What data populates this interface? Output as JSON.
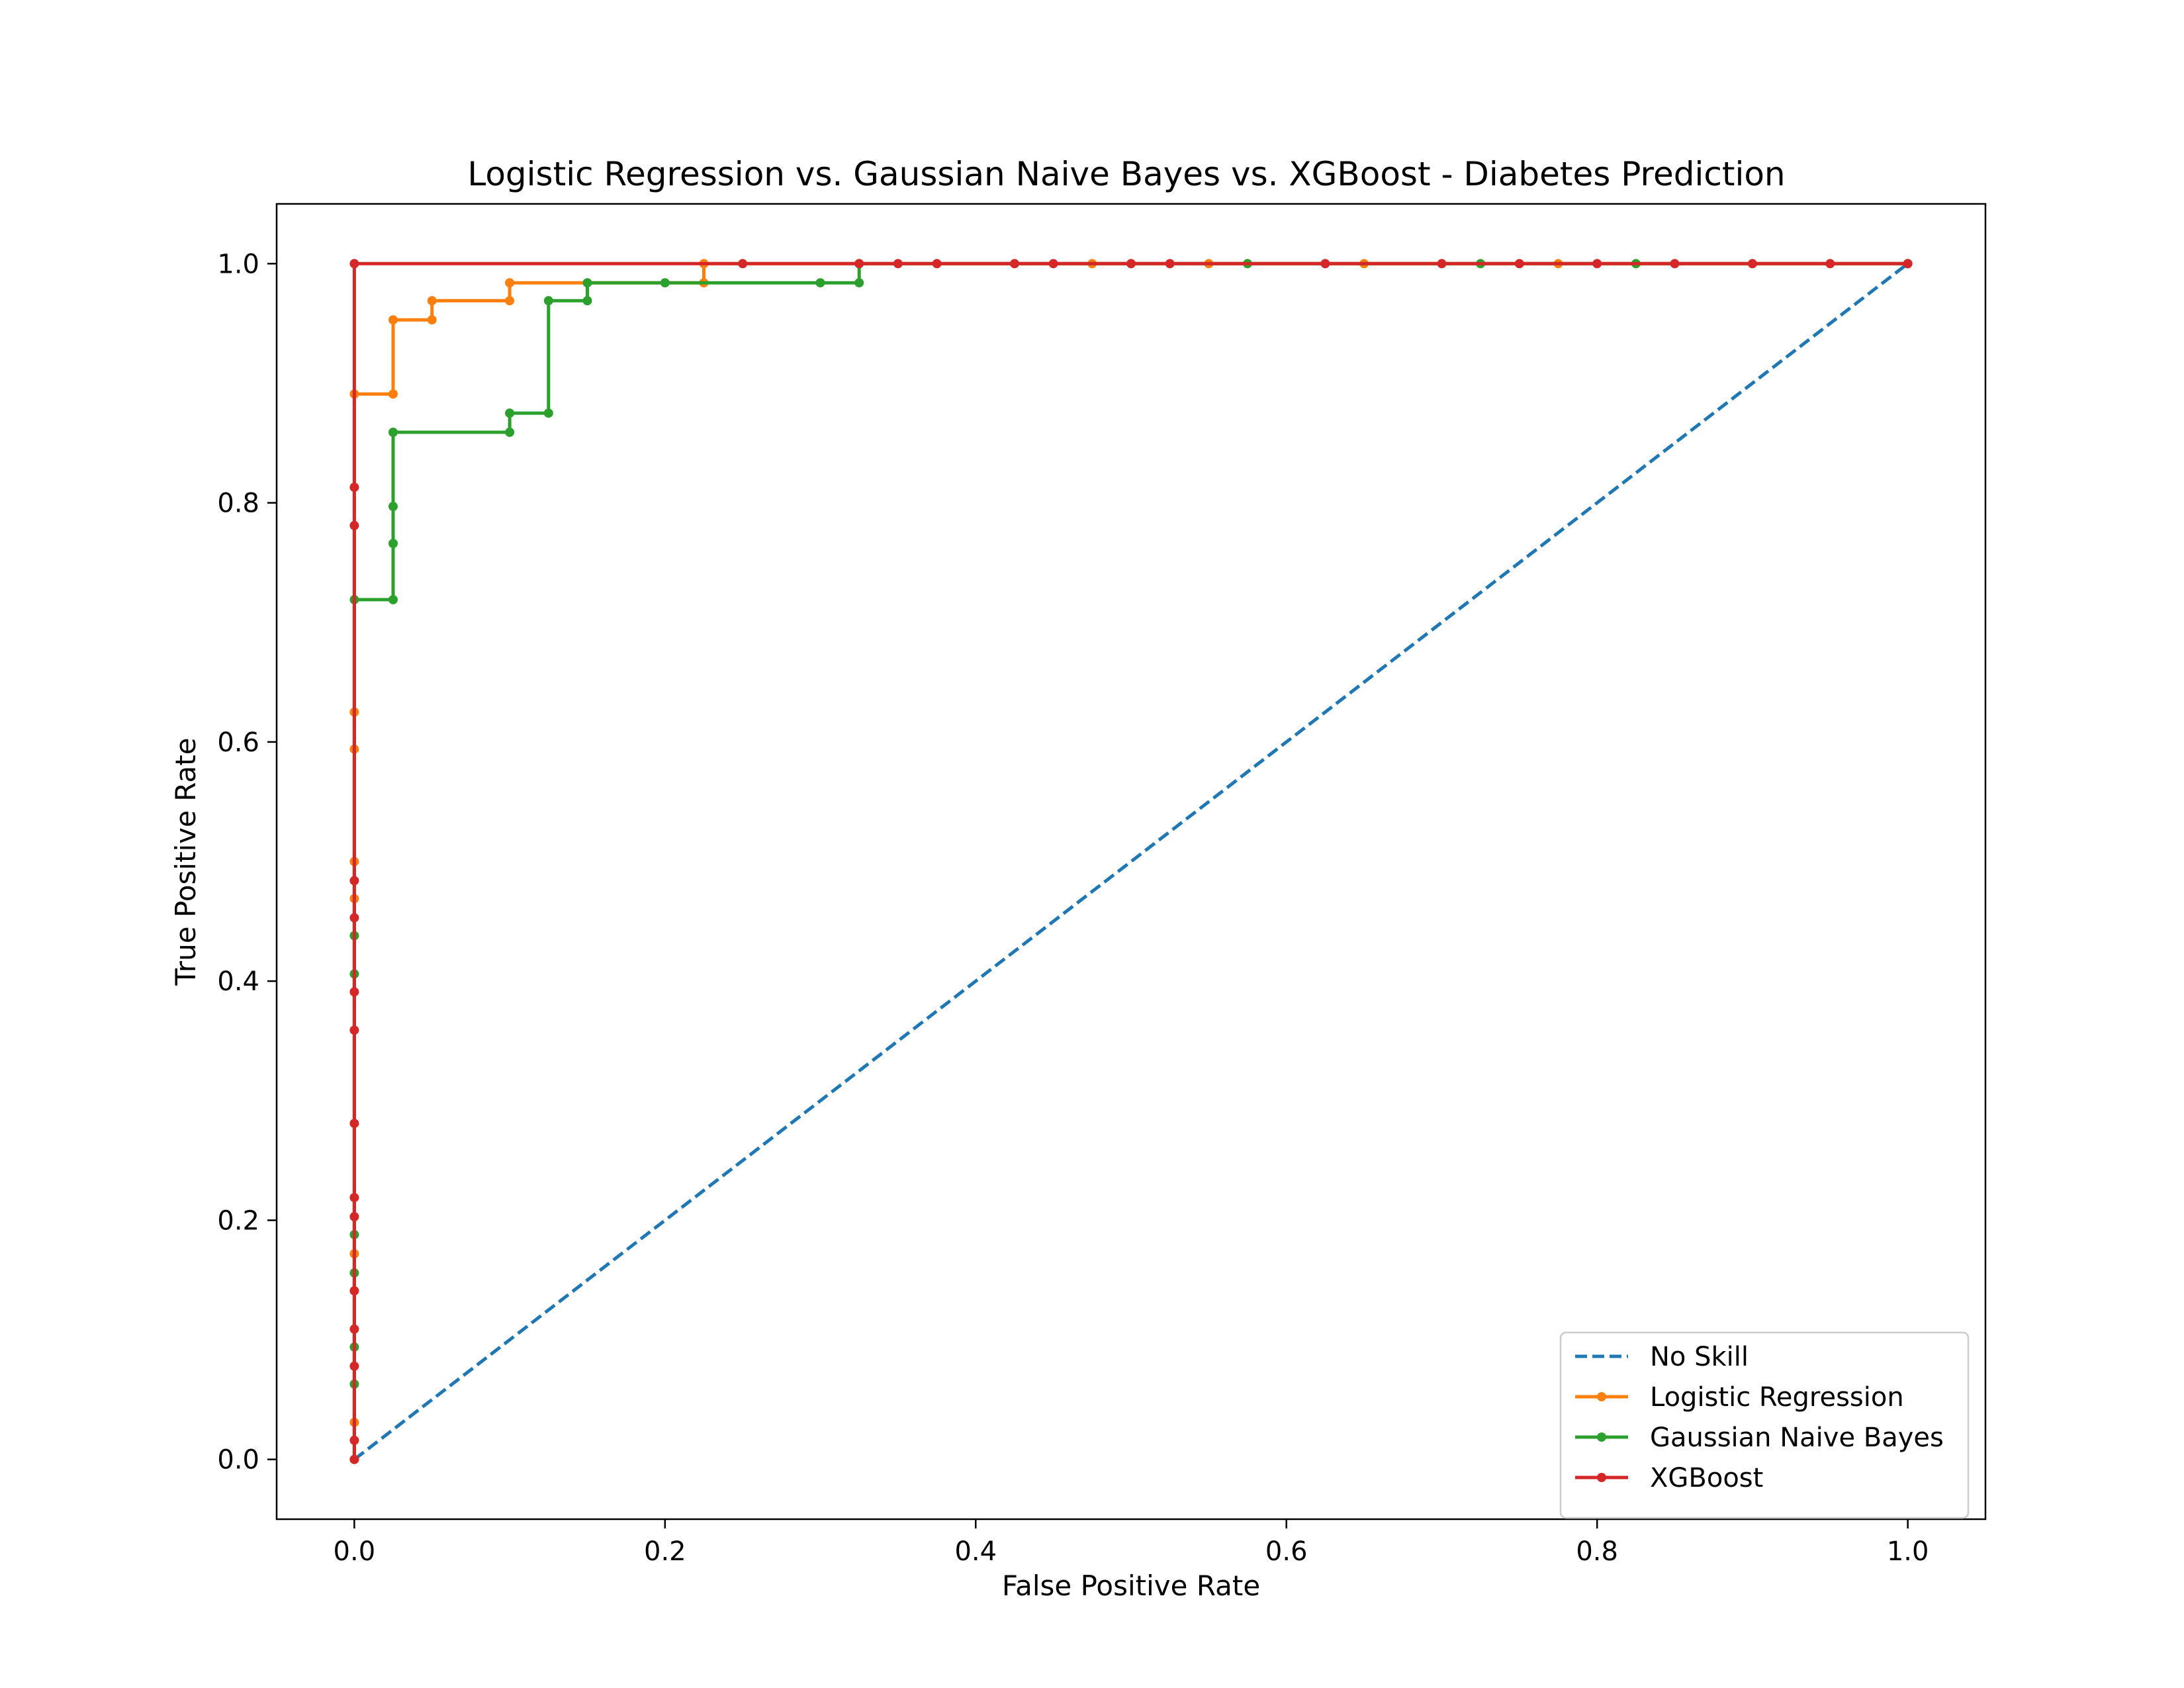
{
  "chart_data": {
    "type": "line",
    "title": "Logistic Regression vs. Gaussian Naive Bayes vs. XGBoost - Diabetes Prediction",
    "xlabel": "False Positive Rate",
    "ylabel": "True Positive Rate",
    "xlim": [
      -0.05,
      1.05
    ],
    "ylim": [
      -0.05,
      1.05
    ],
    "xticks": [
      0.0,
      0.2,
      0.4,
      0.6,
      0.8,
      1.0
    ],
    "yticks": [
      0.0,
      0.2,
      0.4,
      0.6,
      0.8,
      1.0
    ],
    "xtick_labels": [
      "0.0",
      "0.2",
      "0.4",
      "0.6",
      "0.8",
      "1.0"
    ],
    "ytick_labels": [
      "0.0",
      "0.2",
      "0.4",
      "0.6",
      "0.8",
      "1.0"
    ],
    "grid": false,
    "legend_position": "lower-right",
    "series": [
      {
        "name": "No Skill",
        "color": "#1f77b4",
        "style": "dashed",
        "markers": false,
        "points": [
          [
            0,
            0
          ],
          [
            1,
            1
          ]
        ]
      },
      {
        "name": "Logistic Regression",
        "color": "#ff7f0e",
        "style": "solid",
        "markers": true,
        "points": [
          [
            0,
            0
          ],
          [
            0,
            0.031
          ],
          [
            0,
            0.172
          ],
          [
            0,
            0.469
          ],
          [
            0,
            0.5
          ],
          [
            0,
            0.594
          ],
          [
            0,
            0.625
          ],
          [
            0,
            0.891
          ],
          [
            0.025,
            0.891
          ],
          [
            0.025,
            0.953
          ],
          [
            0.05,
            0.953
          ],
          [
            0.05,
            0.969
          ],
          [
            0.1,
            0.969
          ],
          [
            0.1,
            0.984
          ],
          [
            0.225,
            0.984
          ],
          [
            0.225,
            1.0
          ],
          [
            0.475,
            1.0
          ],
          [
            0.55,
            1.0
          ],
          [
            0.65,
            1.0
          ],
          [
            0.775,
            1.0
          ],
          [
            1.0,
            1.0
          ]
        ]
      },
      {
        "name": "Gaussian Naive Bayes",
        "color": "#2ca02c",
        "style": "solid",
        "markers": true,
        "points": [
          [
            0,
            0
          ],
          [
            0,
            0.063
          ],
          [
            0,
            0.094
          ],
          [
            0,
            0.156
          ],
          [
            0,
            0.188
          ],
          [
            0,
            0.406
          ],
          [
            0,
            0.438
          ],
          [
            0,
            0.719
          ],
          [
            0.025,
            0.719
          ],
          [
            0.025,
            0.766
          ],
          [
            0.025,
            0.797
          ],
          [
            0.025,
            0.859
          ],
          [
            0.1,
            0.859
          ],
          [
            0.1,
            0.875
          ],
          [
            0.125,
            0.875
          ],
          [
            0.125,
            0.969
          ],
          [
            0.15,
            0.969
          ],
          [
            0.15,
            0.984
          ],
          [
            0.2,
            0.984
          ],
          [
            0.3,
            0.984
          ],
          [
            0.325,
            0.984
          ],
          [
            0.325,
            1.0
          ],
          [
            0.575,
            1.0
          ],
          [
            0.725,
            1.0
          ],
          [
            0.825,
            1.0
          ],
          [
            1.0,
            1.0
          ]
        ]
      },
      {
        "name": "XGBoost",
        "color": "#d62728",
        "style": "solid",
        "markers": true,
        "points": [
          [
            0,
            0
          ],
          [
            0,
            0.016
          ],
          [
            0,
            0.078
          ],
          [
            0,
            0.109
          ],
          [
            0,
            0.141
          ],
          [
            0,
            0.203
          ],
          [
            0,
            0.219
          ],
          [
            0,
            0.281
          ],
          [
            0,
            0.359
          ],
          [
            0,
            0.391
          ],
          [
            0,
            0.453
          ],
          [
            0,
            0.484
          ],
          [
            0,
            0.781
          ],
          [
            0,
            0.813
          ],
          [
            0,
            1.0
          ],
          [
            0.25,
            1.0
          ],
          [
            0.325,
            1.0
          ],
          [
            0.35,
            1.0
          ],
          [
            0.375,
            1.0
          ],
          [
            0.425,
            1.0
          ],
          [
            0.45,
            1.0
          ],
          [
            0.5,
            1.0
          ],
          [
            0.525,
            1.0
          ],
          [
            0.625,
            1.0
          ],
          [
            0.7,
            1.0
          ],
          [
            0.75,
            1.0
          ],
          [
            0.8,
            1.0
          ],
          [
            0.85,
            1.0
          ],
          [
            0.9,
            1.0
          ],
          [
            0.95,
            1.0
          ],
          [
            1.0,
            1.0
          ]
        ]
      }
    ]
  }
}
